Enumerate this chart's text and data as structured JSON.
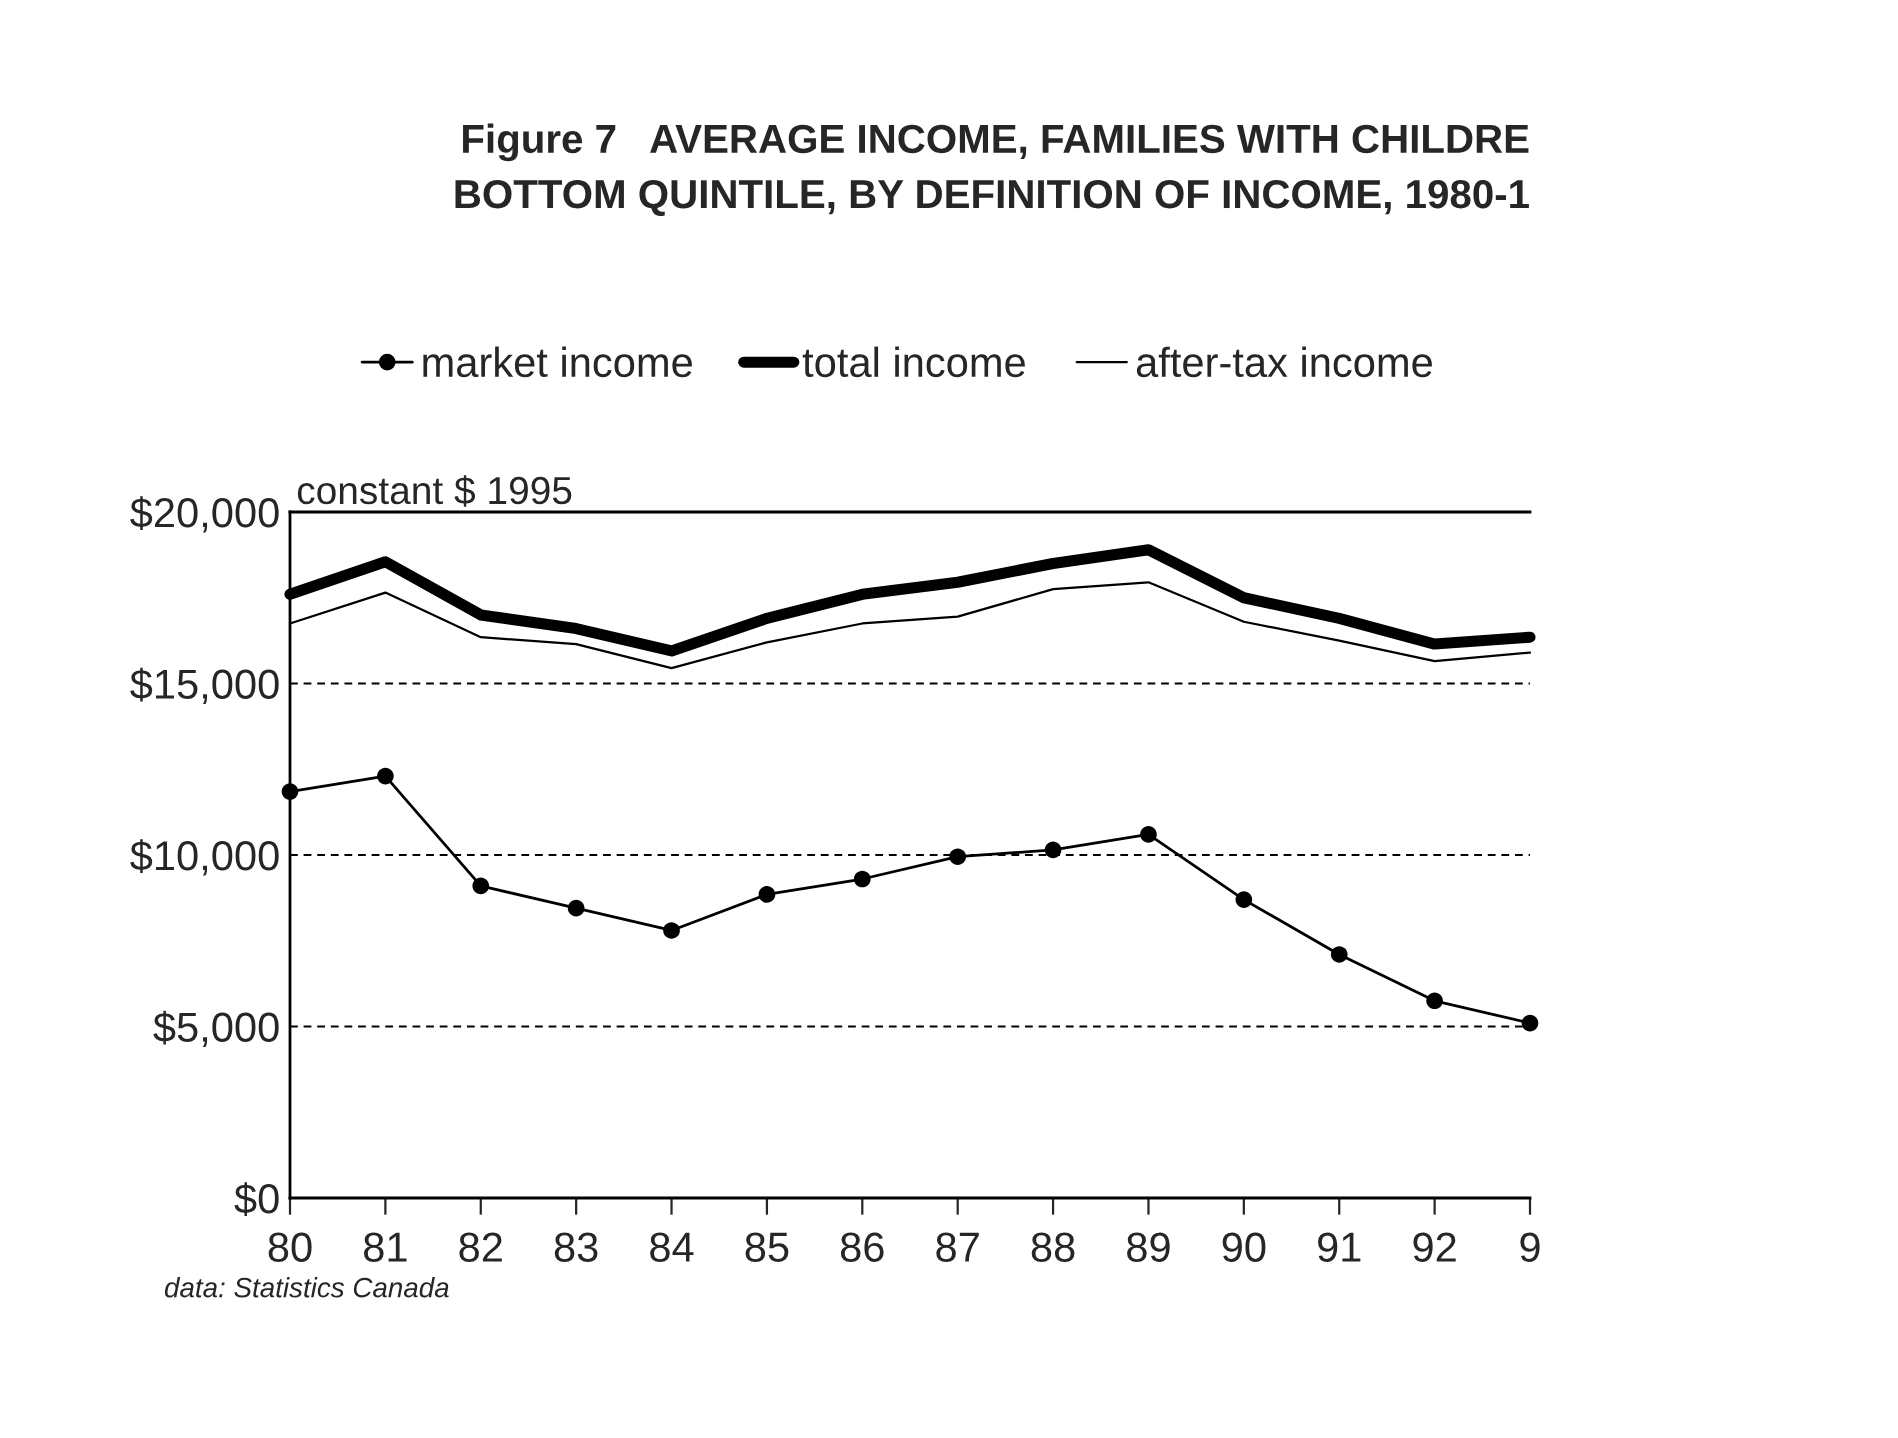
{
  "chart_data": {
    "type": "line",
    "title": "Figure 7   AVERAGE INCOME, FAMILIES WITH CHILDRE\nBOTTOM QUINTILE, BY DEFINITION OF INCOME, 1980-1",
    "ylabel": "constant $ 1995",
    "annotations": [
      "data: Statistics Canada"
    ],
    "categories": [
      "80",
      "81",
      "82",
      "83",
      "84",
      "85",
      "86",
      "87",
      "88",
      "89",
      "90",
      "91",
      "92",
      "9"
    ],
    "series": [
      {
        "name": "market income",
        "color": "#000000",
        "marker": "circle",
        "values": [
          11850,
          12300,
          9100,
          8450,
          7800,
          8850,
          9300,
          9950,
          10150,
          10600,
          8700,
          7100,
          5750,
          5100
        ]
      },
      {
        "name": "total income",
        "color": "#000000",
        "marker": "none",
        "values": [
          17600,
          18550,
          17000,
          16600,
          15950,
          16900,
          17600,
          17950,
          18500,
          18900,
          17500,
          16900,
          16150,
          16350
        ]
      },
      {
        "name": "after-tax income",
        "color": "#000000",
        "marker": "none",
        "values": [
          16750,
          17650,
          16350,
          16150,
          15450,
          16200,
          16750,
          16950,
          17750,
          17950,
          16800,
          16250,
          15650,
          15900
        ]
      }
    ],
    "ylim": [
      0,
      20000
    ],
    "yticks": [
      {
        "value": 0,
        "label": "$0"
      },
      {
        "value": 5000,
        "label": "$5,000"
      },
      {
        "value": 10000,
        "label": "$10,000"
      },
      {
        "value": 15000,
        "label": "$15,000"
      },
      {
        "value": 20000,
        "label": "$20,000"
      }
    ],
    "grid": "y",
    "line_style": "solid",
    "legend": "top"
  }
}
